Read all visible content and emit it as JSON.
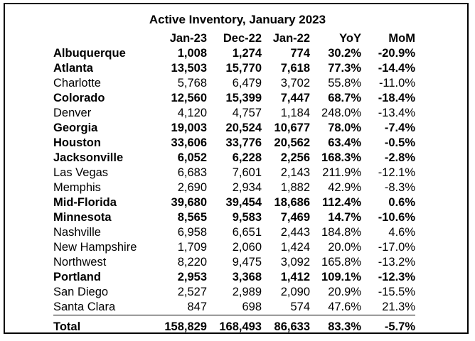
{
  "title": "Active Inventory, January 2023",
  "columns": [
    "",
    "Jan-23",
    "Dec-22",
    "Jan-22",
    "YoY",
    "MoM"
  ],
  "rows": [
    {
      "name": "Albuquerque",
      "jan23": "1,008",
      "dec22": "1,274",
      "jan22": "774",
      "yoy": "30.2%",
      "mom": "-20.9%",
      "bold": true
    },
    {
      "name": "Atlanta",
      "jan23": "13,503",
      "dec22": "15,770",
      "jan22": "7,618",
      "yoy": "77.3%",
      "mom": "-14.4%",
      "bold": true
    },
    {
      "name": "Charlotte",
      "jan23": "5,768",
      "dec22": "6,479",
      "jan22": "3,702",
      "yoy": "55.8%",
      "mom": "-11.0%",
      "bold": false
    },
    {
      "name": "Colorado",
      "jan23": "12,560",
      "dec22": "15,399",
      "jan22": "7,447",
      "yoy": "68.7%",
      "mom": "-18.4%",
      "bold": true
    },
    {
      "name": "Denver",
      "jan23": "4,120",
      "dec22": "4,757",
      "jan22": "1,184",
      "yoy": "248.0%",
      "mom": "-13.4%",
      "bold": false
    },
    {
      "name": "Georgia",
      "jan23": "19,003",
      "dec22": "20,524",
      "jan22": "10,677",
      "yoy": "78.0%",
      "mom": "-7.4%",
      "bold": true
    },
    {
      "name": "Houston",
      "jan23": "33,606",
      "dec22": "33,776",
      "jan22": "20,562",
      "yoy": "63.4%",
      "mom": "-0.5%",
      "bold": true
    },
    {
      "name": "Jacksonville",
      "jan23": "6,052",
      "dec22": "6,228",
      "jan22": "2,256",
      "yoy": "168.3%",
      "mom": "-2.8%",
      "bold": true
    },
    {
      "name": "Las Vegas",
      "jan23": "6,683",
      "dec22": "7,601",
      "jan22": "2,143",
      "yoy": "211.9%",
      "mom": "-12.1%",
      "bold": false
    },
    {
      "name": "Memphis",
      "jan23": "2,690",
      "dec22": "2,934",
      "jan22": "1,882",
      "yoy": "42.9%",
      "mom": "-8.3%",
      "bold": false
    },
    {
      "name": "Mid-Florida",
      "jan23": "39,680",
      "dec22": "39,454",
      "jan22": "18,686",
      "yoy": "112.4%",
      "mom": "0.6%",
      "bold": true
    },
    {
      "name": "Minnesota",
      "jan23": "8,565",
      "dec22": "9,583",
      "jan22": "7,469",
      "yoy": "14.7%",
      "mom": "-10.6%",
      "bold": true
    },
    {
      "name": "Nashville",
      "jan23": "6,958",
      "dec22": "6,651",
      "jan22": "2,443",
      "yoy": "184.8%",
      "mom": "4.6%",
      "bold": false
    },
    {
      "name": "New Hampshire",
      "jan23": "1,709",
      "dec22": "2,060",
      "jan22": "1,424",
      "yoy": "20.0%",
      "mom": "-17.0%",
      "bold": false
    },
    {
      "name": "Northwest",
      "jan23": "8,220",
      "dec22": "9,475",
      "jan22": "3,092",
      "yoy": "165.8%",
      "mom": "-13.2%",
      "bold": false
    },
    {
      "name": "Portland",
      "jan23": "2,953",
      "dec22": "3,368",
      "jan22": "1,412",
      "yoy": "109.1%",
      "mom": "-12.3%",
      "bold": true
    },
    {
      "name": "San Diego",
      "jan23": "2,527",
      "dec22": "2,989",
      "jan22": "2,090",
      "yoy": "20.9%",
      "mom": "-15.5%",
      "bold": false
    },
    {
      "name": "Santa Clara",
      "jan23": "847",
      "dec22": "698",
      "jan22": "574",
      "yoy": "47.6%",
      "mom": "21.3%",
      "bold": false
    }
  ],
  "total": {
    "name": "Total",
    "jan23": "158,829",
    "dec22": "168,493",
    "jan22": "86,633",
    "yoy": "83.3%",
    "mom": "-5.7%"
  }
}
